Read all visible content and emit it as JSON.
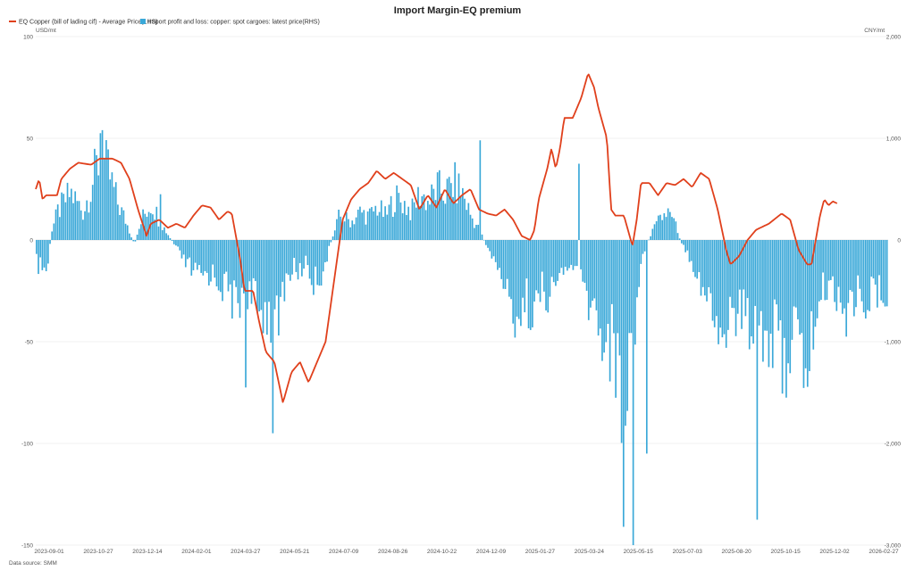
{
  "chart_data": {
    "type": "line+bar",
    "title": "Import Margin-EQ premium",
    "left_unit": "USD/mt",
    "right_unit": "CNY/mt",
    "source": "Data source:  SMM",
    "legend_position": "top-left",
    "y_left_lim": [
      -150,
      100
    ],
    "y_left_ticks": [
      "100",
      "50",
      "0",
      "-50",
      "-100",
      "-150"
    ],
    "y_right_lim": [
      -3000,
      2000
    ],
    "y_right_ticks": [
      "2,000",
      "1,000",
      "0",
      "-1,000",
      "-2,000",
      "-3,000"
    ],
    "x_tick_labels": [
      "2023-09-01",
      "2023-10-27",
      "2023-12-14",
      "2024-02-01",
      "2024-03-27",
      "2024-05-21",
      "2024-07-09",
      "2024-08-26",
      "2024-10-22",
      "2024-12-09",
      "2025-01-27",
      "2025-03-24",
      "2025-05-15",
      "2025-07-03",
      "2025-08-20",
      "2025-10-15",
      "2025-12-02",
      "2026-02-27"
    ],
    "series": [
      {
        "name": "EQ Copper (bill of lading cif) - Average Price(LHS)",
        "type": "line",
        "axis": "left",
        "color": "#e0401c",
        "anchors": [
          [
            0,
            25
          ],
          [
            0.004,
            30
          ],
          [
            0.008,
            20
          ],
          [
            0.012,
            22
          ],
          [
            0.025,
            22
          ],
          [
            0.03,
            30
          ],
          [
            0.04,
            35
          ],
          [
            0.05,
            38
          ],
          [
            0.065,
            37
          ],
          [
            0.075,
            40
          ],
          [
            0.09,
            40
          ],
          [
            0.1,
            38
          ],
          [
            0.11,
            30
          ],
          [
            0.12,
            15
          ],
          [
            0.13,
            2
          ],
          [
            0.135,
            8
          ],
          [
            0.145,
            10
          ],
          [
            0.155,
            6
          ],
          [
            0.165,
            8
          ],
          [
            0.175,
            6
          ],
          [
            0.185,
            12
          ],
          [
            0.195,
            17
          ],
          [
            0.205,
            16
          ],
          [
            0.215,
            10
          ],
          [
            0.225,
            14
          ],
          [
            0.23,
            13
          ],
          [
            0.24,
            -10
          ],
          [
            0.245,
            -25
          ],
          [
            0.255,
            -25
          ],
          [
            0.262,
            -40
          ],
          [
            0.27,
            -55
          ],
          [
            0.28,
            -60
          ],
          [
            0.29,
            -80
          ],
          [
            0.3,
            -65
          ],
          [
            0.31,
            -60
          ],
          [
            0.32,
            -70
          ],
          [
            0.33,
            -60
          ],
          [
            0.34,
            -50
          ],
          [
            0.35,
            -20
          ],
          [
            0.36,
            10
          ],
          [
            0.37,
            20
          ],
          [
            0.38,
            25
          ],
          [
            0.39,
            28
          ],
          [
            0.4,
            34
          ],
          [
            0.41,
            30
          ],
          [
            0.42,
            33
          ],
          [
            0.43,
            30
          ],
          [
            0.44,
            27
          ],
          [
            0.45,
            15
          ],
          [
            0.46,
            22
          ],
          [
            0.47,
            16
          ],
          [
            0.48,
            25
          ],
          [
            0.49,
            18
          ],
          [
            0.5,
            22
          ],
          [
            0.51,
            25
          ],
          [
            0.52,
            15
          ],
          [
            0.53,
            13
          ],
          [
            0.54,
            12
          ],
          [
            0.55,
            15
          ],
          [
            0.56,
            10
          ],
          [
            0.57,
            2
          ],
          [
            0.58,
            0
          ],
          [
            0.585,
            5
          ],
          [
            0.59,
            20
          ],
          [
            0.6,
            35
          ],
          [
            0.605,
            45
          ],
          [
            0.61,
            35
          ],
          [
            0.615,
            45
          ],
          [
            0.62,
            60
          ],
          [
            0.63,
            60
          ],
          [
            0.64,
            70
          ],
          [
            0.648,
            82
          ],
          [
            0.655,
            75
          ],
          [
            0.66,
            65
          ],
          [
            0.67,
            50
          ],
          [
            0.675,
            15
          ],
          [
            0.68,
            12
          ],
          [
            0.69,
            12
          ],
          [
            0.7,
            -3
          ],
          [
            0.705,
            10
          ],
          [
            0.71,
            28
          ],
          [
            0.72,
            28
          ],
          [
            0.73,
            22
          ],
          [
            0.74,
            28
          ],
          [
            0.75,
            27
          ],
          [
            0.76,
            30
          ],
          [
            0.77,
            26
          ],
          [
            0.78,
            33
          ],
          [
            0.79,
            30
          ],
          [
            0.8,
            15
          ],
          [
            0.81,
            -5
          ],
          [
            0.815,
            -12
          ],
          [
            0.825,
            -8
          ],
          [
            0.835,
            0
          ],
          [
            0.845,
            5
          ],
          [
            0.86,
            8
          ],
          [
            0.875,
            13
          ],
          [
            0.885,
            10
          ],
          [
            0.895,
            -5
          ],
          [
            0.905,
            -12
          ],
          [
            0.91,
            -12
          ],
          [
            0.915,
            0
          ],
          [
            0.92,
            12
          ],
          [
            0.925,
            20
          ],
          [
            0.93,
            17
          ],
          [
            0.935,
            19
          ],
          [
            0.94,
            18
          ]
        ]
      },
      {
        "name": "Import profit and loss: copper: spot cargoes: latest price(RHS)",
        "type": "bar",
        "axis": "right",
        "color": "#3aa8d8",
        "anchors": [
          [
            0,
            -250
          ],
          [
            0.012,
            -350
          ],
          [
            0.018,
            100
          ],
          [
            0.025,
            300
          ],
          [
            0.04,
            500
          ],
          [
            0.055,
            300
          ],
          [
            0.065,
            600
          ],
          [
            0.075,
            900
          ],
          [
            0.085,
            700
          ],
          [
            0.095,
            400
          ],
          [
            0.105,
            200
          ],
          [
            0.115,
            -50
          ],
          [
            0.125,
            250
          ],
          [
            0.135,
            400
          ],
          [
            0.145,
            200
          ],
          [
            0.155,
            50
          ],
          [
            0.165,
            -100
          ],
          [
            0.175,
            -250
          ],
          [
            0.19,
            -400
          ],
          [
            0.205,
            -350
          ],
          [
            0.215,
            -450
          ],
          [
            0.225,
            -550
          ],
          [
            0.235,
            -700
          ],
          [
            0.245,
            -500
          ],
          [
            0.255,
            -650
          ],
          [
            0.26,
            -800
          ],
          [
            0.27,
            -700
          ],
          [
            0.28,
            -1100
          ],
          [
            0.29,
            -500
          ],
          [
            0.3,
            -300
          ],
          [
            0.31,
            -350
          ],
          [
            0.315,
            -200
          ],
          [
            0.325,
            -450
          ],
          [
            0.335,
            -350
          ],
          [
            0.345,
            -50
          ],
          [
            0.355,
            250
          ],
          [
            0.37,
            200
          ],
          [
            0.38,
            300
          ],
          [
            0.39,
            250
          ],
          [
            0.4,
            350
          ],
          [
            0.41,
            250
          ],
          [
            0.42,
            450
          ],
          [
            0.43,
            400
          ],
          [
            0.44,
            300
          ],
          [
            0.45,
            500
          ],
          [
            0.46,
            400
          ],
          [
            0.47,
            550
          ],
          [
            0.48,
            500
          ],
          [
            0.49,
            600
          ],
          [
            0.5,
            500
          ],
          [
            0.51,
            250
          ],
          [
            0.52,
            100
          ],
          [
            0.525,
            0
          ],
          [
            0.535,
            -200
          ],
          [
            0.545,
            -350
          ],
          [
            0.555,
            -700
          ],
          [
            0.565,
            -800
          ],
          [
            0.575,
            -650
          ],
          [
            0.585,
            -750
          ],
          [
            0.595,
            -500
          ],
          [
            0.605,
            -650
          ],
          [
            0.61,
            -400
          ],
          [
            0.62,
            -350
          ],
          [
            0.63,
            -250
          ],
          [
            0.645,
            -600
          ],
          [
            0.655,
            -800
          ],
          [
            0.665,
            -1000
          ],
          [
            0.675,
            -1100
          ],
          [
            0.68,
            -1300
          ],
          [
            0.685,
            -1500
          ],
          [
            0.69,
            -2000
          ],
          [
            0.695,
            -1300
          ],
          [
            0.7,
            -1000
          ],
          [
            0.705,
            -600
          ],
          [
            0.71,
            -200
          ],
          [
            0.72,
            50
          ],
          [
            0.73,
            200
          ],
          [
            0.74,
            300
          ],
          [
            0.75,
            150
          ],
          [
            0.755,
            0
          ],
          [
            0.765,
            -150
          ],
          [
            0.775,
            -350
          ],
          [
            0.785,
            -600
          ],
          [
            0.79,
            -700
          ],
          [
            0.8,
            -900
          ],
          [
            0.805,
            -1200
          ],
          [
            0.81,
            -800
          ],
          [
            0.82,
            -800
          ],
          [
            0.83,
            -750
          ],
          [
            0.835,
            -900
          ],
          [
            0.845,
            -750
          ],
          [
            0.855,
            -1050
          ],
          [
            0.865,
            -1000
          ],
          [
            0.875,
            -1300
          ],
          [
            0.885,
            -1100
          ],
          [
            0.89,
            -850
          ],
          [
            0.895,
            -1250
          ],
          [
            0.9,
            -1400
          ],
          [
            0.91,
            -1050
          ],
          [
            0.915,
            -800
          ],
          [
            0.92,
            -600
          ],
          [
            0.93,
            -450
          ],
          [
            0.94,
            -600
          ]
        ],
        "spikes": [
          [
            0.076,
            1050
          ],
          [
            0.078,
            1080
          ],
          [
            0.146,
            450
          ],
          [
            0.245,
            -1450
          ],
          [
            0.278,
            -1900
          ],
          [
            0.52,
            980
          ],
          [
            0.637,
            750
          ],
          [
            0.688,
            -2820
          ],
          [
            0.699,
            -3000
          ],
          [
            0.715,
            -2100
          ],
          [
            0.846,
            -2750
          ],
          [
            0.95,
            -950
          ],
          [
            0.96,
            -750
          ]
        ]
      }
    ]
  }
}
